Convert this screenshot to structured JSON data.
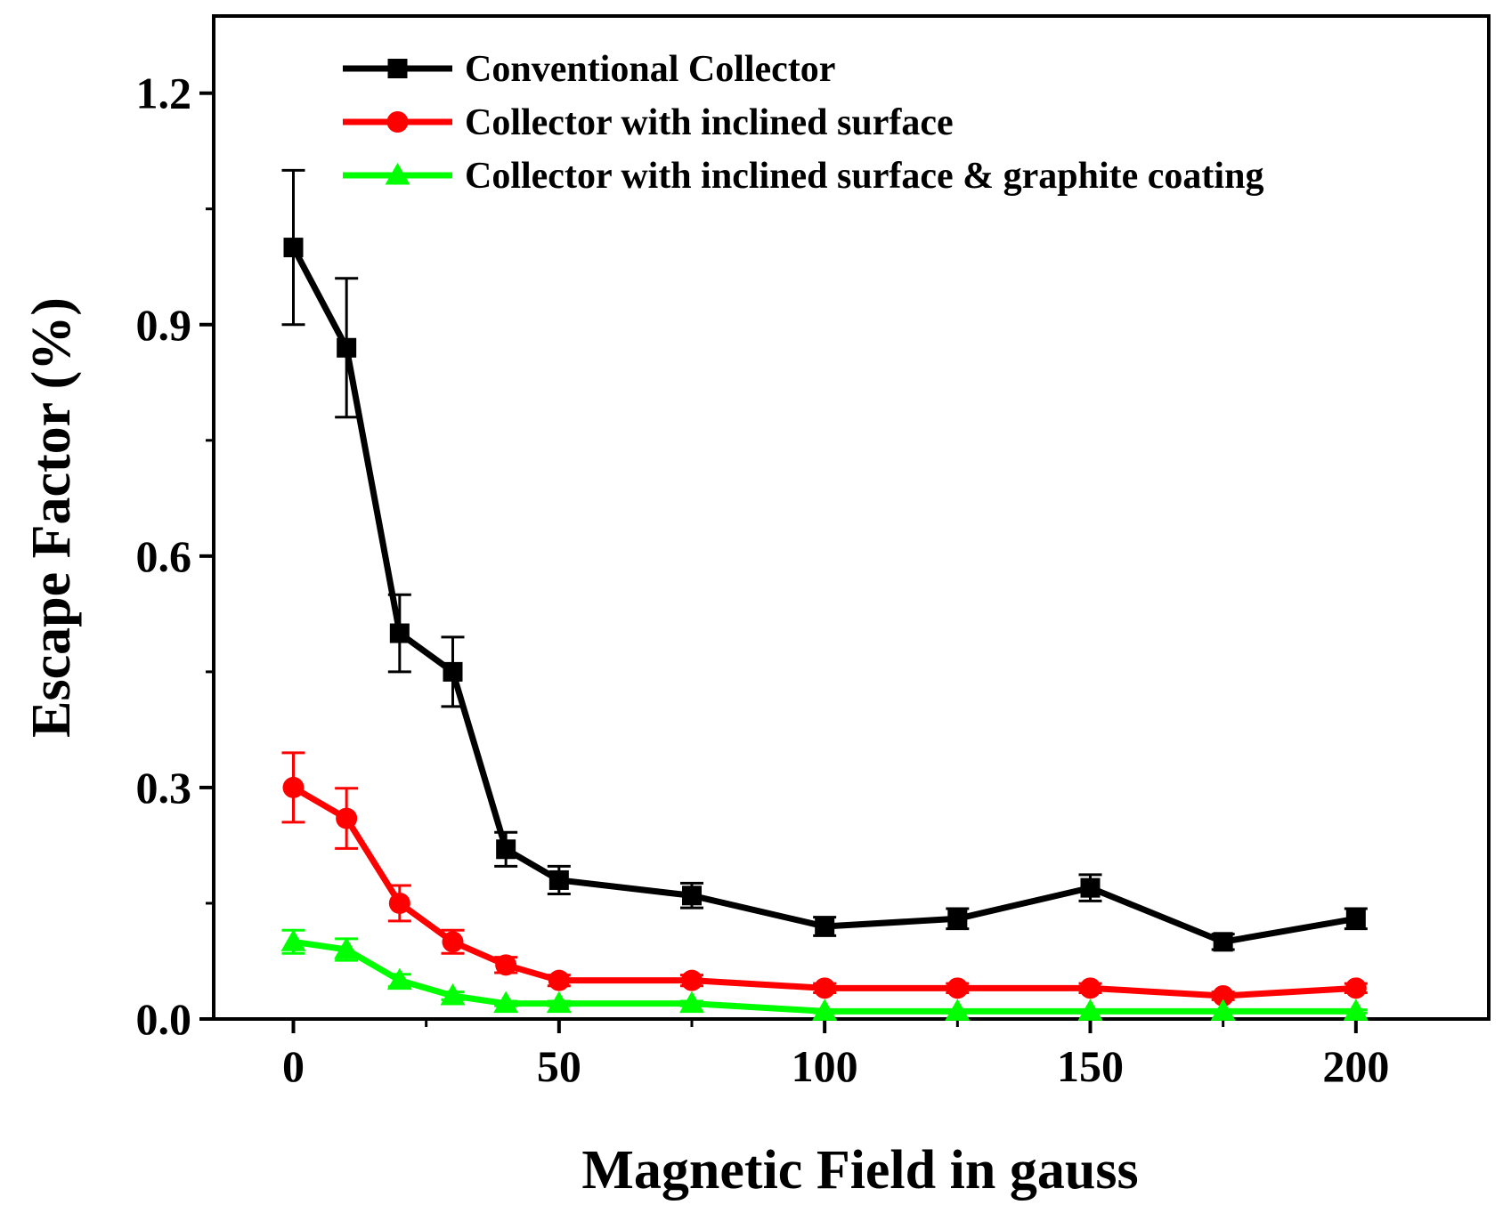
{
  "chart_data": {
    "type": "line",
    "title": "",
    "xlabel": "Magnetic Field in gauss",
    "ylabel": "Escape Factor (%)",
    "xlim": [
      -15,
      225
    ],
    "ylim": [
      0.0,
      1.3
    ],
    "xticks": [
      0,
      50,
      100,
      150,
      200
    ],
    "xtick_labels": [
      "0",
      "50",
      "100",
      "150",
      "200"
    ],
    "yticks": [
      0.0,
      0.3,
      0.6,
      0.9,
      1.2
    ],
    "ytick_labels": [
      "0.0",
      "0.3",
      "0.6",
      "0.9",
      "1.2"
    ],
    "x": [
      0,
      10,
      20,
      30,
      40,
      50,
      75,
      100,
      125,
      150,
      175,
      200
    ],
    "series": [
      {
        "name": "Conventional Collector",
        "color": "#000000",
        "marker": "square",
        "values": [
          1.0,
          0.87,
          0.5,
          0.45,
          0.22,
          0.18,
          0.16,
          0.12,
          0.13,
          0.17,
          0.1,
          0.13
        ],
        "errors": [
          0.1,
          0.09,
          0.05,
          0.045,
          0.022,
          0.018,
          0.016,
          0.012,
          0.013,
          0.017,
          0.01,
          0.013
        ]
      },
      {
        "name": "Collector with inclined surface",
        "color": "#ff0000",
        "marker": "circle",
        "values": [
          0.3,
          0.26,
          0.15,
          0.1,
          0.07,
          0.05,
          0.05,
          0.04,
          0.04,
          0.04,
          0.03,
          0.04
        ],
        "errors": [
          0.045,
          0.039,
          0.023,
          0.015,
          0.01,
          0.007,
          0.007,
          0.006,
          0.006,
          0.006,
          0.005,
          0.006
        ]
      },
      {
        "name": "Collector with inclined surface & graphite coating",
        "color": "#00ff00",
        "marker": "triangle",
        "values": [
          0.1,
          0.09,
          0.05,
          0.03,
          0.02,
          0.02,
          0.02,
          0.01,
          0.01,
          0.01,
          0.01,
          0.01
        ],
        "errors": [
          0.015,
          0.014,
          0.008,
          0.005,
          0.003,
          0.003,
          0.003,
          0.002,
          0.002,
          0.002,
          0.002,
          0.002
        ]
      }
    ],
    "legend": "top-right",
    "grid": false
  }
}
